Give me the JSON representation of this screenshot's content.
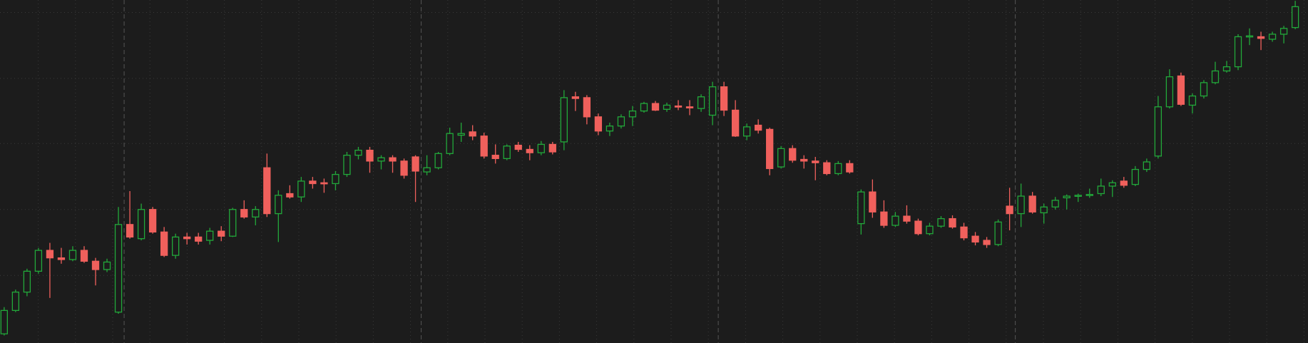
{
  "chart_data": {
    "type": "candlestick",
    "open": [
      11,
      39,
      61,
      86,
      111,
      102,
      100,
      111,
      98,
      88,
      37,
      142,
      125,
      160,
      133,
      105,
      127,
      127,
      123,
      134,
      128,
      160,
      151,
      210,
      155,
      179,
      175,
      194,
      192,
      191,
      202,
      225,
      231,
      218,
      222,
      218,
      223,
      205,
      210,
      227,
      249,
      253,
      248,
      225,
      221,
      237,
      232,
      228,
      238,
      241,
      295,
      294,
      271,
      254,
      260,
      271,
      278,
      287,
      280,
      284,
      283,
      281,
      273,
      307,
      279,
      248,
      261,
      256,
      211,
      233,
      220,
      218,
      216,
      203,
      215,
      143,
      181,
      157,
      141,
      152,
      146,
      131,
      140,
      149,
      139,
      128,
      123,
      118,
      164,
      155,
      176,
      156,
      163,
      174,
      176,
      177,
      179,
      188,
      194,
      190,
      208,
      224,
      283,
      320,
      285,
      296,
      312,
      326,
      331,
      367,
      367,
      364,
      370,
      378
    ],
    "high": [
      43,
      64,
      89,
      114,
      120,
      114,
      116,
      116,
      102,
      101,
      163,
      182,
      167,
      163,
      139,
      131,
      132,
      132,
      138,
      140,
      162,
      171,
      164,
      227,
      183,
      189,
      199,
      199,
      197,
      206,
      229,
      235,
      235,
      225,
      225,
      221,
      225,
      225,
      229,
      258,
      264,
      261,
      252,
      238,
      238,
      241,
      237,
      242,
      241,
      303,
      301,
      297,
      275,
      264,
      274,
      284,
      289,
      290,
      288,
      291,
      291,
      298,
      313,
      313,
      291,
      263,
      268,
      258,
      236,
      237,
      225,
      223,
      219,
      218,
      219,
      184,
      196,
      171,
      157,
      165,
      149,
      144,
      152,
      153,
      144,
      133,
      127,
      148,
      186,
      191,
      181,
      167,
      175,
      178,
      179,
      185,
      197,
      195,
      199,
      212,
      221,
      296,
      328,
      324,
      299,
      315,
      337,
      338,
      370,
      377,
      373,
      373,
      380,
      410
    ],
    "low": [
      9,
      37,
      56,
      83,
      54,
      95,
      98,
      96,
      69,
      85,
      35,
      125,
      123,
      131,
      103,
      101,
      118,
      118,
      118,
      122,
      127,
      149,
      141,
      151,
      121,
      173,
      169,
      185,
      180,
      183,
      199,
      220,
      204,
      208,
      204,
      197,
      169,
      201,
      208,
      225,
      241,
      243,
      221,
      215,
      219,
      229,
      219,
      225,
      226,
      231,
      278,
      262,
      249,
      248,
      257,
      260,
      276,
      278,
      277,
      279,
      273,
      277,
      261,
      272,
      247,
      243,
      251,
      201,
      209,
      216,
      209,
      195,
      201,
      201,
      203,
      130,
      150,
      138,
      139,
      143,
      129,
      129,
      138,
      137,
      123,
      117,
      114,
      116,
      135,
      139,
      155,
      143,
      160,
      160,
      169,
      174,
      176,
      175,
      186,
      188,
      205,
      221,
      281,
      284,
      275,
      293,
      310,
      324,
      327,
      357,
      351,
      361,
      359,
      376
    ],
    "close": [
      39,
      61,
      86,
      111,
      102,
      100,
      111,
      98,
      88,
      97,
      142,
      127,
      160,
      133,
      105,
      127,
      125,
      122,
      134,
      128,
      160,
      151,
      160,
      155,
      177,
      175,
      194,
      191,
      191,
      202,
      225,
      231,
      218,
      222,
      218,
      201,
      206,
      210,
      227,
      251,
      251,
      248,
      224,
      221,
      236,
      232,
      228,
      238,
      229,
      294,
      293,
      271,
      254,
      260,
      271,
      278,
      287,
      279,
      285,
      283,
      282,
      295,
      307,
      279,
      248,
      259,
      255,
      209,
      233,
      219,
      218,
      216,
      203,
      215,
      205,
      181,
      157,
      141,
      152,
      146,
      131,
      140,
      149,
      139,
      126,
      121,
      118,
      145,
      155,
      176,
      157,
      163,
      171,
      176,
      177,
      178,
      188,
      192,
      189,
      208,
      217,
      283,
      319,
      286,
      296,
      312,
      326,
      331,
      367,
      368,
      365,
      370,
      377,
      403
    ],
    "ylim": [
      0,
      411
    ],
    "yticks": [
      81,
      160,
      239,
      317,
      396
    ],
    "grid": true,
    "up_color": "#22a83a",
    "down_color": "#f0605c"
  }
}
